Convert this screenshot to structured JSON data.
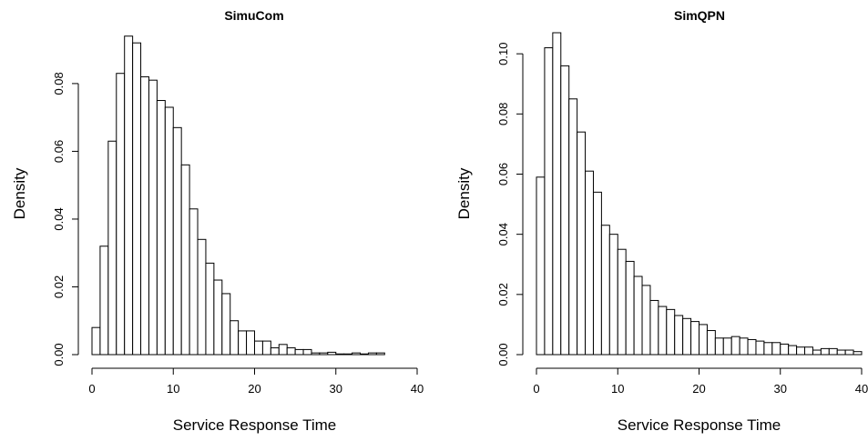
{
  "chart_data": [
    {
      "type": "bar",
      "title": "SimuCom",
      "xlabel": "Service Response Time",
      "ylabel": "Density",
      "xlim": [
        0,
        40
      ],
      "ylim": [
        0,
        0.095
      ],
      "bin_width": 1,
      "x_ticks": [
        "0",
        "10",
        "20",
        "30",
        "40"
      ],
      "y_ticks": [
        "0.00",
        "0.02",
        "0.04",
        "0.06",
        "0.08"
      ],
      "bins_start": [
        0,
        1,
        2,
        3,
        4,
        5,
        6,
        7,
        8,
        9,
        10,
        11,
        12,
        13,
        14,
        15,
        16,
        17,
        18,
        19,
        20,
        21,
        22,
        23,
        24,
        25,
        26,
        27,
        28,
        29,
        30,
        31,
        32,
        33,
        34,
        35
      ],
      "values": [
        0.008,
        0.032,
        0.063,
        0.083,
        0.094,
        0.092,
        0.082,
        0.081,
        0.075,
        0.073,
        0.067,
        0.056,
        0.043,
        0.034,
        0.027,
        0.022,
        0.018,
        0.01,
        0.007,
        0.007,
        0.004,
        0.004,
        0.002,
        0.003,
        0.002,
        0.0015,
        0.0015,
        0.0005,
        0.0005,
        0.0007,
        0.0002,
        0.0002,
        0.0005,
        0.0002,
        0.0005,
        0.0005
      ]
    },
    {
      "type": "bar",
      "title": "SimQPN",
      "xlabel": "Service Response Time",
      "ylabel": "Density",
      "xlim": [
        0,
        40
      ],
      "ylim": [
        0,
        0.107
      ],
      "bin_width": 1,
      "x_ticks": [
        "0",
        "10",
        "20",
        "30",
        "40"
      ],
      "y_ticks": [
        "0.00",
        "0.02",
        "0.04",
        "0.06",
        "0.08",
        "0.10"
      ],
      "bins_start": [
        0,
        1,
        2,
        3,
        4,
        5,
        6,
        7,
        8,
        9,
        10,
        11,
        12,
        13,
        14,
        15,
        16,
        17,
        18,
        19,
        20,
        21,
        22,
        23,
        24,
        25,
        26,
        27,
        28,
        29,
        30,
        31,
        32,
        33,
        34,
        35,
        36,
        37,
        38,
        39
      ],
      "values": [
        0.059,
        0.102,
        0.107,
        0.096,
        0.085,
        0.074,
        0.061,
        0.054,
        0.043,
        0.04,
        0.035,
        0.031,
        0.026,
        0.023,
        0.018,
        0.016,
        0.015,
        0.013,
        0.012,
        0.011,
        0.01,
        0.008,
        0.0055,
        0.0055,
        0.006,
        0.0055,
        0.005,
        0.0045,
        0.004,
        0.004,
        0.0035,
        0.003,
        0.0025,
        0.0025,
        0.0015,
        0.002,
        0.002,
        0.0015,
        0.0015,
        0.001
      ]
    }
  ]
}
